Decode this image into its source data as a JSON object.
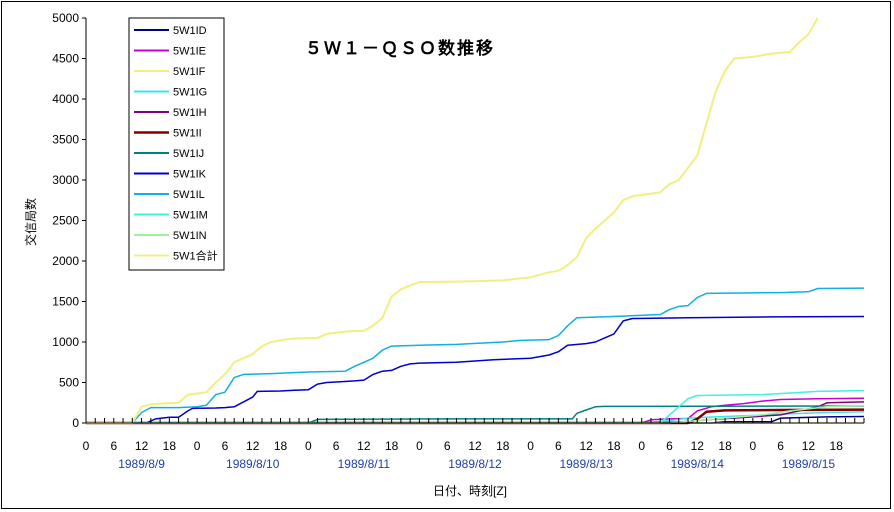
{
  "chart_data": {
    "type": "line",
    "title": "５Ｗ１－ＱＳＯ数推移",
    "xlabel": "日付、時刻[Z]",
    "ylabel": "交信局数",
    "ylim": [
      0,
      5000
    ],
    "yticks": [
      0,
      500,
      1000,
      1500,
      2000,
      2500,
      3000,
      3500,
      4000,
      4500,
      5000
    ],
    "hour_ticks": [
      "0",
      "6",
      "12",
      "18"
    ],
    "days": [
      "1989/8/9",
      "1989/8/10",
      "1989/8/11",
      "1989/8/12",
      "1989/8/13",
      "1989/8/14",
      "1989/8/15"
    ],
    "x_unit": "hours since 1989/8/9 00Z",
    "xlim": [
      0,
      168
    ],
    "grid": false,
    "legend_position": "top-left",
    "series": [
      {
        "name": "5W1ID",
        "color": "#000080",
        "width": 1.5,
        "points": [
          [
            0,
            0
          ],
          [
            135,
            0
          ],
          [
            138,
            15
          ],
          [
            148,
            15
          ],
          [
            150,
            60
          ],
          [
            160,
            75
          ],
          [
            168,
            80
          ]
        ]
      },
      {
        "name": "5W1IE",
        "color": "#cc00cc",
        "width": 1.5,
        "points": [
          [
            0,
            0
          ],
          [
            120,
            0
          ],
          [
            122,
            40
          ],
          [
            126,
            50
          ],
          [
            130,
            55
          ],
          [
            132,
            150
          ],
          [
            135,
            200
          ],
          [
            138,
            220
          ],
          [
            142,
            240
          ],
          [
            146,
            270
          ],
          [
            150,
            290
          ],
          [
            158,
            300
          ],
          [
            168,
            305
          ]
        ]
      },
      {
        "name": "5W1IF",
        "color": "#f0f080",
        "width": 1.5,
        "points": [
          [
            0,
            0
          ],
          [
            168,
            0
          ]
        ]
      },
      {
        "name": "5W1IG",
        "color": "#40e0f0",
        "width": 1.5,
        "points": [
          [
            0,
            0
          ],
          [
            120,
            0
          ],
          [
            126,
            30
          ],
          [
            130,
            60
          ],
          [
            134,
            70
          ],
          [
            138,
            80
          ],
          [
            142,
            90
          ],
          [
            150,
            110
          ],
          [
            160,
            130
          ],
          [
            168,
            140
          ]
        ]
      },
      {
        "name": "5W1IH",
        "color": "#800080",
        "width": 1.5,
        "points": [
          [
            0,
            0
          ],
          [
            124,
            0
          ],
          [
            130,
            20
          ],
          [
            134,
            40
          ],
          [
            140,
            60
          ],
          [
            150,
            100
          ],
          [
            158,
            200
          ],
          [
            160,
            250
          ],
          [
            168,
            260
          ]
        ]
      },
      {
        "name": "5W1II",
        "color": "#800000",
        "width": 2.5,
        "points": [
          [
            0,
            0
          ],
          [
            130,
            0
          ],
          [
            132,
            50
          ],
          [
            134,
            140
          ],
          [
            138,
            155
          ],
          [
            150,
            160
          ],
          [
            168,
            165
          ]
        ]
      },
      {
        "name": "5W1IJ",
        "color": "#008080",
        "width": 1.5,
        "points": [
          [
            0,
            0
          ],
          [
            48,
            0
          ],
          [
            50,
            45
          ],
          [
            80,
            50
          ],
          [
            105,
            50
          ],
          [
            106,
            120
          ],
          [
            108,
            160
          ],
          [
            110,
            200
          ],
          [
            112,
            205
          ],
          [
            168,
            210
          ]
        ]
      },
      {
        "name": "5W1IK",
        "color": "#0000cc",
        "width": 1.5,
        "points": [
          [
            0,
            0
          ],
          [
            13,
            0
          ],
          [
            15,
            50
          ],
          [
            18,
            70
          ],
          [
            20,
            70
          ],
          [
            22,
            150
          ],
          [
            23,
            180
          ],
          [
            28,
            185
          ],
          [
            30,
            190
          ],
          [
            32,
            200
          ],
          [
            34,
            260
          ],
          [
            36,
            320
          ],
          [
            37,
            390
          ],
          [
            42,
            395
          ],
          [
            45,
            405
          ],
          [
            48,
            410
          ],
          [
            50,
            480
          ],
          [
            52,
            500
          ],
          [
            55,
            510
          ],
          [
            58,
            520
          ],
          [
            60,
            530
          ],
          [
            62,
            600
          ],
          [
            64,
            640
          ],
          [
            66,
            650
          ],
          [
            68,
            700
          ],
          [
            70,
            730
          ],
          [
            72,
            740
          ],
          [
            80,
            750
          ],
          [
            88,
            780
          ],
          [
            96,
            800
          ],
          [
            98,
            820
          ],
          [
            100,
            840
          ],
          [
            102,
            880
          ],
          [
            104,
            960
          ],
          [
            108,
            980
          ],
          [
            110,
            1000
          ],
          [
            112,
            1050
          ],
          [
            114,
            1100
          ],
          [
            116,
            1260
          ],
          [
            118,
            1290
          ],
          [
            130,
            1300
          ],
          [
            148,
            1310
          ],
          [
            168,
            1315
          ]
        ]
      },
      {
        "name": "5W1IL",
        "color": "#10b0e0",
        "width": 1.5,
        "points": [
          [
            0,
            0
          ],
          [
            10,
            0
          ],
          [
            12,
            130
          ],
          [
            14,
            190
          ],
          [
            20,
            190
          ],
          [
            24,
            200
          ],
          [
            26,
            220
          ],
          [
            28,
            350
          ],
          [
            30,
            380
          ],
          [
            32,
            560
          ],
          [
            34,
            600
          ],
          [
            40,
            610
          ],
          [
            48,
            630
          ],
          [
            56,
            640
          ],
          [
            58,
            700
          ],
          [
            60,
            750
          ],
          [
            62,
            800
          ],
          [
            64,
            900
          ],
          [
            66,
            950
          ],
          [
            72,
            960
          ],
          [
            80,
            970
          ],
          [
            90,
            1000
          ],
          [
            94,
            1020
          ],
          [
            100,
            1030
          ],
          [
            102,
            1080
          ],
          [
            104,
            1200
          ],
          [
            106,
            1300
          ],
          [
            116,
            1320
          ],
          [
            124,
            1340
          ],
          [
            126,
            1400
          ],
          [
            128,
            1440
          ],
          [
            130,
            1450
          ],
          [
            132,
            1550
          ],
          [
            134,
            1600
          ],
          [
            150,
            1610
          ],
          [
            156,
            1620
          ],
          [
            158,
            1660
          ],
          [
            168,
            1665
          ]
        ]
      },
      {
        "name": "5W1IM",
        "color": "#40f0e0",
        "width": 1.5,
        "points": [
          [
            0,
            0
          ],
          [
            124,
            0
          ],
          [
            126,
            100
          ],
          [
            128,
            200
          ],
          [
            130,
            300
          ],
          [
            132,
            340
          ],
          [
            146,
            350
          ],
          [
            152,
            370
          ],
          [
            158,
            390
          ],
          [
            168,
            400
          ]
        ]
      },
      {
        "name": "5W1IN",
        "color": "#a0f0a0",
        "width": 1.5,
        "points": [
          [
            0,
            0
          ],
          [
            126,
            0
          ],
          [
            130,
            20
          ],
          [
            138,
            60
          ],
          [
            146,
            100
          ],
          [
            152,
            150
          ],
          [
            160,
            200
          ],
          [
            168,
            215
          ]
        ]
      },
      {
        "name": "5W1合計",
        "color": "#f0f080",
        "width": 2,
        "points": [
          [
            0,
            0
          ],
          [
            10,
            0
          ],
          [
            12,
            200
          ],
          [
            14,
            230
          ],
          [
            16,
            240
          ],
          [
            20,
            250
          ],
          [
            22,
            350
          ],
          [
            26,
            380
          ],
          [
            28,
            500
          ],
          [
            30,
            600
          ],
          [
            32,
            750
          ],
          [
            34,
            800
          ],
          [
            36,
            850
          ],
          [
            38,
            950
          ],
          [
            40,
            1000
          ],
          [
            44,
            1040
          ],
          [
            50,
            1050
          ],
          [
            52,
            1100
          ],
          [
            56,
            1130
          ],
          [
            60,
            1140
          ],
          [
            62,
            1200
          ],
          [
            64,
            1300
          ],
          [
            66,
            1560
          ],
          [
            68,
            1650
          ],
          [
            70,
            1700
          ],
          [
            72,
            1740
          ],
          [
            84,
            1750
          ],
          [
            90,
            1760
          ],
          [
            96,
            1800
          ],
          [
            100,
            1860
          ],
          [
            102,
            1880
          ],
          [
            104,
            1950
          ],
          [
            106,
            2050
          ],
          [
            108,
            2280
          ],
          [
            110,
            2400
          ],
          [
            112,
            2500
          ],
          [
            114,
            2600
          ],
          [
            116,
            2750
          ],
          [
            118,
            2800
          ],
          [
            124,
            2850
          ],
          [
            126,
            2950
          ],
          [
            128,
            3000
          ],
          [
            130,
            3150
          ],
          [
            132,
            3300
          ],
          [
            134,
            3700
          ],
          [
            136,
            4100
          ],
          [
            138,
            4350
          ],
          [
            140,
            4500
          ],
          [
            144,
            4520
          ],
          [
            148,
            4560
          ],
          [
            152,
            4580
          ],
          [
            154,
            4700
          ],
          [
            156,
            4800
          ],
          [
            158,
            5000
          ]
        ]
      }
    ]
  }
}
